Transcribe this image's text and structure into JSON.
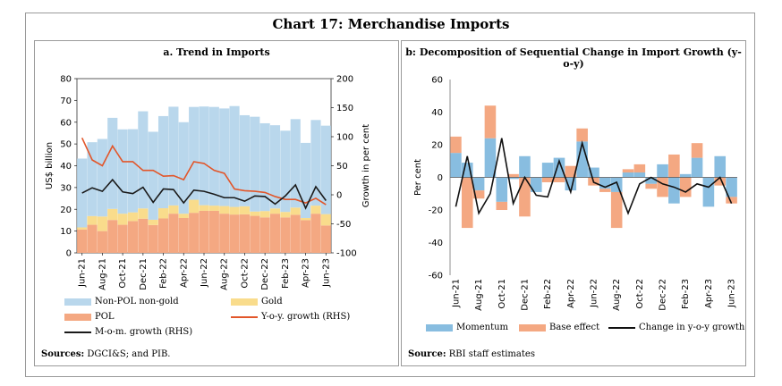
{
  "title": "Chart 17: Merchandise Imports",
  "colors": {
    "non_pol": "#b9d7ec",
    "gold": "#f9dc8c",
    "pol": "#f4a882",
    "yoy": "#e2562a",
    "mom": "#1a1a1a",
    "momentum": "#88bde0",
    "base": "#f4a882",
    "change": "#111111"
  },
  "panel_a": {
    "title": "a. Trend in Imports",
    "source_label": "Sources:",
    "source_text": "DGCI&S; and PIB.",
    "legend": {
      "non_pol": "Non-POL non-gold",
      "gold": "Gold",
      "pol": "POL",
      "yoy": "Y-o-y. growth (RHS)",
      "mom": "M-o-m. growth (RHS)"
    }
  },
  "panel_b": {
    "title": "b: Decomposition of Sequential Change in Import Growth (y-o-y)",
    "source_label": "Source:",
    "source_text": "RBI staff estimates",
    "legend": {
      "momentum": "Momentum",
      "base": "Base effect",
      "change": "Change in y-o-y growth"
    }
  },
  "chart_data": [
    {
      "type": "bar",
      "stacked": true,
      "title": "a. Trend in Imports",
      "ylabel": "US$ billion",
      "y2label": "Growth in per cent",
      "ylim": [
        0,
        80
      ],
      "y2lim": [
        -100,
        200
      ],
      "yticks": [
        0,
        10,
        20,
        30,
        40,
        50,
        60,
        70,
        80
      ],
      "y2ticks": [
        -100,
        -50,
        0,
        50,
        100,
        150,
        200
      ],
      "categories": [
        "Jun-21",
        "Jul-21",
        "Aug-21",
        "Sep-21",
        "Oct-21",
        "Nov-21",
        "Dec-21",
        "Jan-22",
        "Feb-22",
        "Mar-22",
        "Apr-22",
        "May-22",
        "Jun-22",
        "Jul-22",
        "Aug-22",
        "Sep-22",
        "Oct-22",
        "Nov-22",
        "Dec-22",
        "Jan-23",
        "Feb-23",
        "Mar-23",
        "Apr-23",
        "May-23",
        "Jun-23"
      ],
      "tick_labels": [
        "Jun-21",
        "Aug-21",
        "Oct-21",
        "Dec-21",
        "Feb-22",
        "Apr-22",
        "Jun-22",
        "Aug-22",
        "Oct-22",
        "Dec-22",
        "Feb-23",
        "Apr-23",
        "Jun-23"
      ],
      "series": [
        {
          "name": "POL",
          "axis": "left",
          "kind": "bar",
          "values": [
            10.7,
            12.9,
            10.0,
            15.1,
            12.9,
            14.6,
            15.7,
            12.8,
            15.8,
            18.0,
            16.0,
            18.4,
            19.3,
            19.3,
            18.0,
            17.6,
            17.7,
            17.0,
            16.3,
            18.0,
            16.3,
            17.5,
            15.0,
            18.0,
            12.6
          ]
        },
        {
          "name": "Gold",
          "axis": "left",
          "kind": "bar",
          "values": [
            1.0,
            4.0,
            6.7,
            5.1,
            5.1,
            4.0,
            4.7,
            2.4,
            4.7,
            3.8,
            2.0,
            6.0,
            2.6,
            2.4,
            3.5,
            3.5,
            3.7,
            2.0,
            2.9,
            2.4,
            2.5,
            3.3,
            1.0,
            3.7,
            5.2
          ]
        },
        {
          "name": "Non-POL non-gold",
          "axis": "left",
          "kind": "bar",
          "values": [
            31.6,
            33.9,
            35.6,
            41.8,
            38.7,
            38.2,
            44.6,
            40.4,
            42.3,
            45.3,
            42.0,
            42.6,
            45.3,
            45.3,
            44.8,
            46.3,
            41.8,
            43.5,
            40.3,
            38.2,
            37.3,
            40.6,
            34.5,
            39.3,
            40.6
          ]
        },
        {
          "name": "Y-o-y. growth (RHS)",
          "axis": "right",
          "kind": "line",
          "values": [
            98,
            60,
            50,
            84,
            57,
            57,
            42,
            42,
            32,
            33,
            26,
            57,
            54,
            42,
            37,
            10,
            7,
            6,
            4,
            -3,
            -8,
            -8,
            -14,
            -6,
            -17
          ]
        },
        {
          "name": "M-o-m. growth (RHS)",
          "axis": "right",
          "kind": "line",
          "values": [
            3,
            12,
            6,
            26,
            5,
            2,
            13,
            -13,
            10,
            9,
            -14,
            8,
            6,
            1,
            -5,
            -5,
            -11,
            -2,
            -3,
            -16,
            -2,
            17,
            -23,
            14,
            -10
          ]
        }
      ]
    },
    {
      "type": "bar",
      "title": "b: Decomposition of Sequential Change in Import Growth (y-o-y)",
      "ylabel": "Per cent",
      "ylim": [
        -60,
        60
      ],
      "yticks": [
        -60,
        -40,
        -20,
        0,
        20,
        40,
        60
      ],
      "categories": [
        "Jun-21",
        "Jul-21",
        "Aug-21",
        "Sep-21",
        "Oct-21",
        "Nov-21",
        "Dec-21",
        "Jan-22",
        "Feb-22",
        "Mar-22",
        "Apr-22",
        "May-22",
        "Jun-22",
        "Jul-22",
        "Aug-22",
        "Sep-22",
        "Oct-22",
        "Nov-22",
        "Dec-22",
        "Jan-23",
        "Feb-23",
        "Mar-23",
        "Apr-23",
        "May-23",
        "Jun-23"
      ],
      "tick_labels": [
        "Jun-21",
        "Aug-21",
        "Oct-21",
        "Dec-21",
        "Feb-22",
        "Apr-22",
        "Jun-22",
        "Aug-22",
        "Oct-22",
        "Dec-22",
        "Feb-23",
        "Apr-23",
        "Jun-23"
      ],
      "series": [
        {
          "name": "Momentum",
          "kind": "bar",
          "values": [
            15,
            9,
            -8,
            24,
            -15,
            -1,
            13,
            -9,
            9,
            12,
            -8,
            22,
            6,
            -7,
            -9,
            3,
            3,
            -4,
            8,
            -16,
            2,
            12,
            -18,
            13,
            -12
          ]
        },
        {
          "name": "Base effect",
          "kind": "bar",
          "values": [
            10,
            -31,
            -5,
            20,
            -5,
            2,
            -24,
            0,
            -3,
            -3,
            7,
            8,
            -5,
            -2,
            -22,
            2,
            5,
            -3,
            -12,
            14,
            -12,
            9,
            0,
            -5,
            -4
          ]
        },
        {
          "name": "Change in y-o-y growth",
          "kind": "line",
          "values": [
            -18,
            13,
            -22,
            -10,
            24,
            -16,
            0,
            -11,
            -12,
            10,
            -9,
            21,
            -3,
            -6,
            -3,
            -22,
            -4,
            0,
            -4,
            -6,
            -9,
            -4,
            -6,
            0,
            -16
          ]
        }
      ]
    }
  ]
}
